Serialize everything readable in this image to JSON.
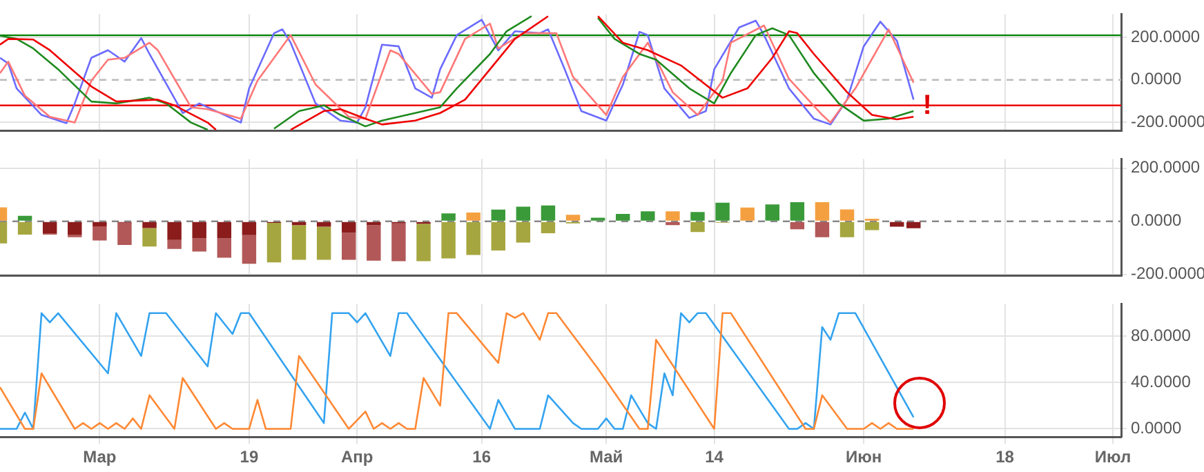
{
  "chart_data": [
    {
      "type": "line",
      "xlim": [
        "--02-17",
        "--07-02"
      ],
      "xticks": [
        {
          "value": "--03-01",
          "label": null
        },
        {
          "value": "--03-19",
          "label": null
        },
        {
          "value": "--04-01",
          "label": null
        },
        {
          "value": "--04-16",
          "label": null
        },
        {
          "value": "--05-01",
          "label": null
        },
        {
          "value": "--05-14",
          "label": null
        },
        {
          "value": "--06-01",
          "label": null
        },
        {
          "value": "--06-18",
          "label": null
        },
        {
          "value": "--07-01",
          "label": null
        }
      ],
      "ylim": [
        -240,
        310
      ],
      "yticks": [
        {
          "value": -200,
          "label": "-200.0000"
        },
        {
          "value": 0,
          "label": "0.0000"
        },
        {
          "value": 200,
          "label": "200.0000"
        }
      ],
      "grid": true,
      "tick_labels": "y",
      "marker": "none",
      "ref_lines": [
        {
          "axis": "y",
          "value": 0,
          "color": "#bbbbbb",
          "line_style": "dashed"
        },
        {
          "axis": "y",
          "value": 210,
          "color": "#008000",
          "line_style": "solid"
        },
        {
          "axis": "y",
          "value": -120,
          "color": "#ee0000",
          "line_style": "solid"
        }
      ],
      "annotations": [
        "!"
      ],
      "series": [
        {
          "color": "#6b6bff",
          "x": [
            "--02-17",
            "--02-18",
            "--02-19",
            "--02-22",
            "--02-25",
            "--02-26",
            "--02-28",
            "--03-02",
            "--03-03",
            "--03-04",
            "--03-06",
            "--03-07",
            "--03-11",
            "--03-13",
            "--03-18",
            "--03-19",
            "--03-22",
            "--03-23",
            "--03-24",
            "--03-27",
            "--03-30",
            "--04-01",
            "--04-02",
            "--04-04",
            "--04-06",
            "--04-08",
            "--04-10",
            "--04-11",
            "--04-13",
            "--04-16",
            "--04-18",
            "--04-20",
            "--04-23",
            "--04-24",
            "--04-26",
            "--04-28",
            "--05-01",
            "--05-03",
            "--05-05",
            "--05-06",
            "--05-08",
            "--05-11",
            "--05-13",
            "--05-14",
            "--05-17",
            "--05-19",
            "--05-20",
            "--05-23",
            "--05-26",
            "--05-28",
            "--05-30",
            "--06-01",
            "--06-03",
            "--06-05",
            "--06-07"
          ],
          "values": [
            104,
            77,
            -40,
            -165,
            -204,
            -111,
            104,
            140,
            113,
            86,
            197,
            122,
            -156,
            -111,
            -201,
            -40,
            220,
            238,
            175,
            -111,
            -192,
            -201,
            -129,
            166,
            158,
            -40,
            -84,
            50,
            211,
            283,
            139,
            229,
            220,
            238,
            50,
            -147,
            -192,
            -22,
            226,
            211,
            -40,
            -179,
            -147,
            50,
            247,
            279,
            211,
            -40,
            -183,
            -210,
            -93,
            158,
            274,
            184,
            -93
          ]
        },
        {
          "color": "#ff7777",
          "x": [
            "--02-17",
            "--02-18",
            "--02-20",
            "--02-23",
            "--02-26",
            "--02-28",
            "--03-02",
            "--03-04",
            "--03-07",
            "--03-08",
            "--03-12",
            "--03-14",
            "--03-18",
            "--03-20",
            "--03-24",
            "--03-27",
            "--03-31",
            "--04-02",
            "--04-05",
            "--04-06",
            "--04-10",
            "--04-11",
            "--04-14",
            "--04-17",
            "--04-18",
            "--04-21",
            "--04-25",
            "--04-27",
            "--05-01",
            "--05-03",
            "--05-06",
            "--05-09",
            "--05-12",
            "--05-15",
            "--05-16",
            "--05-20",
            "--05-23",
            "--05-27",
            "--05-28",
            "--05-31",
            "--06-04",
            "--06-07"
          ],
          "values": [
            32,
            86,
            -75,
            -174,
            -201,
            -4,
            95,
            104,
            175,
            140,
            -129,
            -138,
            -183,
            -4,
            211,
            -22,
            -174,
            -183,
            139,
            122,
            -66,
            -58,
            193,
            265,
            148,
            220,
            220,
            14,
            -165,
            14,
            175,
            -58,
            -165,
            -4,
            175,
            256,
            5,
            -165,
            -201,
            -40,
            238,
            -13
          ]
        },
        {
          "color": "#1f8a1f",
          "x": [
            "--02-17",
            "--02-19",
            "--02-21",
            "--02-24",
            "--02-28",
            "--03-03",
            "--03-07",
            "--03-09",
            "--03-12",
            "--03-14",
            "--03-18",
            "--03-22",
            "--03-25",
            "--03-28",
            "--03-30",
            "--04-02",
            "--04-04",
            "--04-08",
            "--04-11",
            "--04-13",
            "--04-17",
            "--04-19",
            "--04-22",
            "--04-27",
            "--04-30",
            "--05-02",
            "--05-05",
            "--05-07",
            "--05-11",
            "--05-14",
            "--05-16",
            "--05-19",
            "--05-21",
            "--05-23",
            "--05-26",
            "--05-29",
            "--06-01",
            "--06-04",
            "--06-07"
          ],
          "values": [
            208,
            193,
            148,
            50,
            -102,
            -111,
            -84,
            -111,
            -201,
            -235,
            null,
            -230,
            -147,
            -120,
            -165,
            -219,
            -192,
            -156,
            -129,
            -40,
            122,
            229,
            300,
            null,
            292,
            193,
            122,
            95,
            -40,
            -111,
            32,
            211,
            243,
            211,
            32,
            -111,
            -192,
            -183,
            -147
          ]
        },
        {
          "color": "#ee0000",
          "x": [
            "--02-17",
            "--02-18",
            "--02-21",
            "--02-23",
            "--02-28",
            "--03-03",
            "--03-08",
            "--03-10",
            "--03-14",
            "--03-15",
            "--03-20",
            "--03-24",
            "--03-28",
            "--03-30",
            "--04-02",
            "--04-04",
            "--04-08",
            "--04-11",
            "--04-14",
            "--04-17",
            "--04-20",
            "--04-24",
            "--04-27",
            "--04-30",
            "--05-03",
            "--05-06",
            "--05-10",
            "--05-15",
            "--05-18",
            "--05-21",
            "--05-23",
            "--05-24",
            "--05-26",
            "--05-30",
            "--06-02",
            "--06-05",
            "--06-07"
          ],
          "values": [
            166,
            193,
            190,
            140,
            -31,
            -102,
            -93,
            -120,
            -201,
            -235,
            null,
            -235,
            -147,
            -138,
            -183,
            -210,
            -192,
            -156,
            -93,
            50,
            193,
            300,
            null,
            300,
            175,
            140,
            68,
            -84,
            -40,
            104,
            229,
            220,
            122,
            -58,
            -165,
            -186,
            -174
          ]
        }
      ]
    },
    {
      "type": "bar",
      "xlim": [
        "--02-17",
        "--07-02"
      ],
      "xticks": [
        {
          "value": "--03-01",
          "label": null
        },
        {
          "value": "--03-19",
          "label": null
        },
        {
          "value": "--04-01",
          "label": null
        },
        {
          "value": "--04-16",
          "label": null
        },
        {
          "value": "--05-01",
          "label": null
        },
        {
          "value": "--05-14",
          "label": null
        },
        {
          "value": "--06-01",
          "label": null
        },
        {
          "value": "--06-18",
          "label": null
        },
        {
          "value": "--07-01",
          "label": null
        }
      ],
      "ylim": [
        -205,
        235
      ],
      "yticks": [
        {
          "value": -200,
          "label": "-200.0000"
        },
        {
          "value": 0,
          "label": "0.0000"
        },
        {
          "value": 200,
          "label": "200.0000"
        }
      ],
      "grid": true,
      "tick_labels": "y",
      "stacked": true,
      "ref_lines": [
        {
          "axis": "y",
          "value": 0,
          "color": "#888888",
          "line_style": "dashed"
        }
      ],
      "x": [
        "--02-17",
        "--02-20",
        "--02-23",
        "--02-26",
        "--03-01",
        "--03-04",
        "--03-07",
        "--03-10",
        "--03-13",
        "--03-16",
        "--03-19",
        "--03-22",
        "--03-25",
        "--03-28",
        "--03-31",
        "--04-03",
        "--04-06",
        "--04-09",
        "--04-12",
        "--04-15",
        "--04-18",
        "--04-21",
        "--04-24",
        "--04-27",
        "--04-30",
        "--05-03",
        "--05-06",
        "--05-09",
        "--05-12",
        "--05-15",
        "--05-18",
        "--05-21",
        "--05-24",
        "--05-27",
        "--05-30",
        "--06-02",
        "--06-05",
        "--06-07"
      ],
      "series": [
        {
          "color": "#8b1c1c",
          "values": [
            null,
            null,
            -45,
            -50,
            -19,
            -5,
            -25,
            -70,
            -64,
            -64,
            -52,
            -6,
            -14,
            -20,
            -43,
            -15,
            -8,
            -9,
            null,
            null,
            null,
            null,
            null,
            null,
            null,
            null,
            null,
            null,
            null,
            null,
            null,
            null,
            null,
            null,
            null,
            null,
            null,
            null
          ]
        },
        {
          "values": [
            -83,
            -50,
            -5,
            -10,
            -53,
            -84,
            -70,
            -34,
            -50,
            -73,
            -108,
            -149,
            -131,
            -125,
            -102,
            -133,
            -142,
            -141,
            -140,
            -127,
            -110,
            -80,
            -45,
            -8,
            null,
            null,
            null,
            -14,
            -40,
            -5,
            null,
            null,
            -30,
            -60,
            -60,
            -33,
            -20,
            -26
          ],
          "colors": [
            "#a6a640",
            "#a6a640",
            "#b25858",
            "#b25858",
            "#b25858",
            "#b25858",
            "#a6a640",
            "#b25858",
            "#b25858",
            "#b25858",
            "#b25858",
            "#a6a640",
            "#a6a640",
            "#a6a640",
            "#b25858",
            "#b25858",
            "#b25858",
            "#a6a640",
            "#a6a640",
            "#a6a640",
            "#a6a640",
            "#a6a640",
            "#a6a640",
            "#a6a640",
            "#a6a640",
            "#a6a640",
            "#a6a640",
            "#b25858",
            "#a6a640",
            "#a6a640",
            "#a6a640",
            "#a6a640",
            "#b25858",
            "#b25858",
            "#a6a640",
            "#a6a640",
            "#8b1c1c",
            "#8b1c1c"
          ]
        },
        {
          "values": [
            53,
            21,
            null,
            null,
            null,
            null,
            null,
            null,
            null,
            null,
            null,
            null,
            null,
            null,
            null,
            null,
            null,
            null,
            30,
            33,
            44,
            55,
            60,
            25,
            14,
            28,
            38,
            38,
            35,
            70,
            52,
            64,
            72,
            72,
            45,
            10,
            null,
            null
          ],
          "colors": [
            "#f5a040",
            "#3a9a3a",
            "#3a9a3a",
            "#3a9a3a",
            "#3a9a3a",
            "#3a9a3a",
            "#3a9a3a",
            "#3a9a3a",
            "#3a9a3a",
            "#3a9a3a",
            "#3a9a3a",
            "#3a9a3a",
            "#3a9a3a",
            "#3a9a3a",
            "#3a9a3a",
            "#3a9a3a",
            "#3a9a3a",
            "#3a9a3a",
            "#3a9a3a",
            "#f5a040",
            "#3a9a3a",
            "#3a9a3a",
            "#3a9a3a",
            "#f5a040",
            "#3a9a3a",
            "#3a9a3a",
            "#3a9a3a",
            "#f5a040",
            "#3a9a3a",
            "#3a9a3a",
            "#f5a040",
            "#3a9a3a",
            "#3a9a3a",
            "#f5a040",
            "#f5a040",
            "#f5a040",
            "#3a9a3a",
            "#3a9a3a"
          ]
        }
      ]
    },
    {
      "type": "line",
      "xlim": [
        "--02-17",
        "--07-02"
      ],
      "xticks": [
        {
          "value": "--03-01",
          "label": "Мар"
        },
        {
          "value": "--03-19",
          "label": "19"
        },
        {
          "value": "--04-01",
          "label": "Апр"
        },
        {
          "value": "--04-16",
          "label": "16"
        },
        {
          "value": "--05-01",
          "label": "Май"
        },
        {
          "value": "--05-14",
          "label": "14"
        },
        {
          "value": "--06-01",
          "label": "Июн"
        },
        {
          "value": "--06-18",
          "label": "18"
        },
        {
          "value": "--07-01",
          "label": "Июл"
        }
      ],
      "ylim": [
        -7,
        108
      ],
      "yticks": [
        {
          "value": 0,
          "label": "0.0000"
        },
        {
          "value": 40,
          "label": "40.0000"
        },
        {
          "value": 80,
          "label": "80.0000"
        }
      ],
      "grid": true,
      "marker": "none",
      "series": [
        {
          "color": "#33a3f0",
          "x": [
            "--02-17",
            "--02-19",
            "--02-20",
            "--02-21",
            "--02-22",
            "--02-23",
            "--02-24",
            "--03-02",
            "--03-03",
            "--03-06",
            "--03-07",
            "--03-09",
            "--03-14",
            "--03-15",
            "--03-17",
            "--03-18",
            "--03-19",
            "--03-28",
            "--03-29",
            "--03-31",
            "--04-01",
            "--04-02",
            "--04-05",
            "--04-06",
            "--04-07",
            "--04-17",
            "--04-18",
            "--04-20",
            "--04-23",
            "--04-24",
            "--04-27",
            "--04-28",
            "--04-30",
            "--05-01",
            "--05-02",
            "--05-03",
            "--05-04",
            "--05-06",
            "--05-07",
            "--05-08",
            "--05-09",
            "--05-10",
            "--05-11",
            "--05-12",
            "--05-13",
            "--05-23",
            "--05-24",
            "--05-25",
            "--05-26",
            "--05-27",
            "--05-28",
            "--05-29",
            "--05-31",
            "--06-07"
          ],
          "values": [
            0,
            0,
            14,
            0,
            100,
            92,
            100,
            48,
            100,
            63,
            100,
            100,
            54,
            100,
            82,
            100,
            100,
            5,
            100,
            100,
            92,
            100,
            63,
            100,
            100,
            0,
            25,
            0,
            0,
            29,
            5,
            0,
            0,
            9,
            0,
            0,
            29,
            5,
            0,
            48,
            29,
            100,
            92,
            100,
            100,
            0,
            0,
            5,
            0,
            88,
            77,
            100,
            100,
            10
          ]
        },
        {
          "color": "#ff8833",
          "x": [
            "--02-17",
            "--02-20",
            "--02-21",
            "--02-22",
            "--02-26",
            "--02-27",
            "--02-28",
            "--03-01",
            "--03-02",
            "--03-03",
            "--03-04",
            "--03-05",
            "--03-06",
            "--03-07",
            "--03-10",
            "--03-11",
            "--03-15",
            "--03-16",
            "--03-17",
            "--03-19",
            "--03-20",
            "--03-21",
            "--03-24",
            "--03-25",
            "--03-31",
            "--04-02",
            "--04-03",
            "--04-04",
            "--04-05",
            "--04-06",
            "--04-07",
            "--04-08",
            "--04-09",
            "--04-11",
            "--04-12",
            "--04-13",
            "--04-18",
            "--04-19",
            "--04-20",
            "--04-21",
            "--04-23",
            "--04-24",
            "--04-25",
            "--04-30",
            "--05-05",
            "--05-06",
            "--05-07",
            "--05-14",
            "--05-15",
            "--05-16",
            "--05-25",
            "--05-26",
            "--05-27",
            "--05-30",
            "--06-01",
            "--06-02",
            "--06-03",
            "--06-04",
            "--06-05",
            "--06-07"
          ],
          "values": [
            36,
            0,
            0,
            48,
            0,
            5,
            0,
            5,
            0,
            5,
            0,
            9,
            0,
            29,
            0,
            44,
            0,
            5,
            0,
            0,
            25,
            0,
            0,
            63,
            0,
            15,
            0,
            5,
            0,
            5,
            0,
            0,
            44,
            20,
            100,
            100,
            57,
            100,
            96,
            100,
            77,
            100,
            100,
            52,
            0,
            0,
            77,
            0,
            100,
            100,
            0,
            0,
            29,
            0,
            0,
            5,
            0,
            5,
            0,
            0
          ]
        }
      ]
    }
  ]
}
